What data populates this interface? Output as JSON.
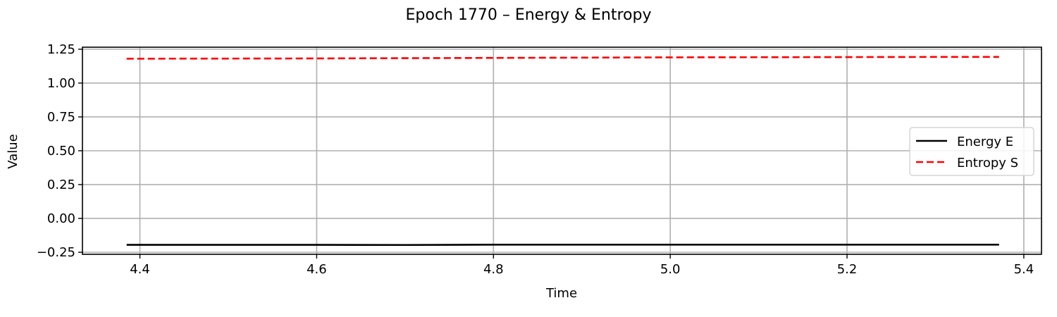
{
  "chart_data": {
    "type": "line",
    "title": "Epoch 1770 – Energy & Entropy",
    "xlabel": "Time",
    "ylabel": "Value",
    "xlim": [
      4.335,
      5.42
    ],
    "ylim": [
      -0.265,
      1.265
    ],
    "xticks": [
      4.4,
      4.6,
      4.8,
      5.0,
      5.2,
      5.4
    ],
    "xtick_labels": [
      "4.4",
      "4.6",
      "4.8",
      "5.0",
      "5.2",
      "5.4"
    ],
    "yticks": [
      -0.25,
      0.0,
      0.25,
      0.5,
      0.75,
      1.0,
      1.25
    ],
    "ytick_labels": [
      "−0.25",
      "0.00",
      "0.25",
      "0.50",
      "0.75",
      "1.00",
      "1.25"
    ],
    "grid": true,
    "legend_position": "center-right",
    "series": [
      {
        "name": "Energy E",
        "color": "#000000",
        "style": "solid",
        "x": [
          4.385,
          4.5,
          4.6,
          4.7,
          4.8,
          4.9,
          5.0,
          5.1,
          5.2,
          5.3,
          5.372
        ],
        "y": [
          -0.195,
          -0.195,
          -0.195,
          -0.196,
          -0.194,
          -0.194,
          -0.194,
          -0.194,
          -0.194,
          -0.194,
          -0.194
        ]
      },
      {
        "name": "Entropy S",
        "color": "#ff0000",
        "style": "dashed",
        "x": [
          4.385,
          4.5,
          4.6,
          4.7,
          4.8,
          4.9,
          5.0,
          5.1,
          5.2,
          5.3,
          5.372
        ],
        "y": [
          1.18,
          1.181,
          1.182,
          1.184,
          1.186,
          1.188,
          1.19,
          1.191,
          1.192,
          1.193,
          1.193
        ]
      }
    ]
  }
}
